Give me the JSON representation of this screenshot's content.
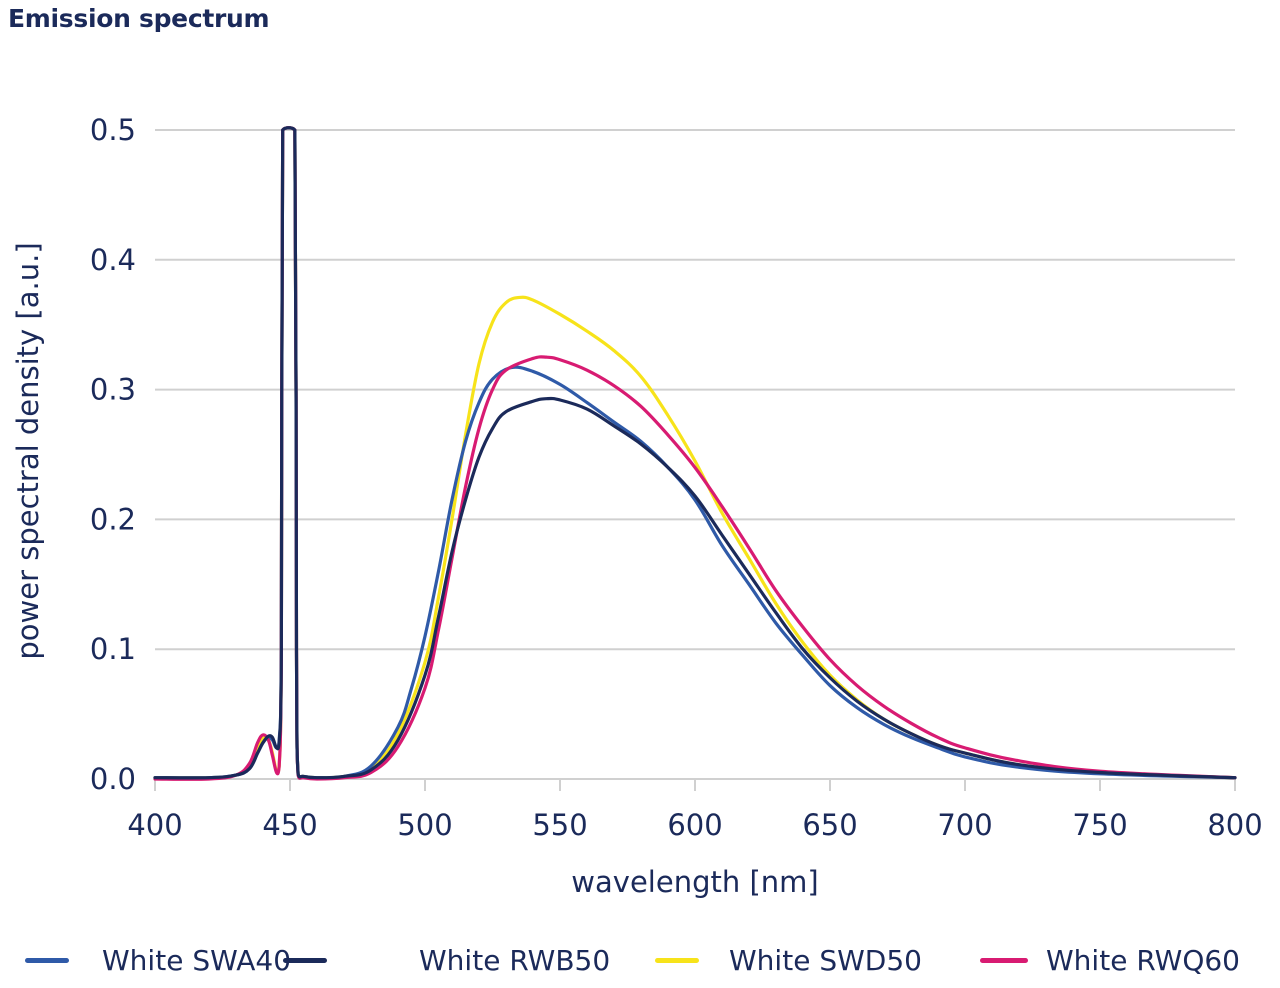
{
  "chart_data": {
    "type": "line",
    "title": "Emission spectrum",
    "xlabel": "wavelength [nm]",
    "ylabel": "power spectral density [a.u.]",
    "xlim": [
      400,
      800
    ],
    "ylim": [
      0,
      0.5
    ],
    "xticks": [
      400,
      450,
      500,
      550,
      600,
      650,
      700,
      750,
      800
    ],
    "xtick_labels": [
      "400",
      "450",
      "500",
      "550",
      "600",
      "650",
      "700",
      "750",
      "800"
    ],
    "yticks": [
      0.0,
      0.1,
      0.2,
      0.3,
      0.4,
      0.5
    ],
    "ytick_labels": [
      "0.0",
      "0.1",
      "0.2",
      "0.3",
      "0.4",
      "0.5"
    ],
    "grid": true,
    "legend_position": "bottom",
    "series": [
      {
        "name": "White SWA40",
        "color": "#2f5aa8",
        "x": [
          400,
          420,
          430,
          435,
          438,
          440,
          442,
          443.5,
          445,
          446,
          446.8,
          447.3,
          451.8,
          452.4,
          453,
          455,
          460,
          470,
          480,
          490,
          495,
          500,
          505,
          510,
          515,
          520,
          525,
          532,
          540,
          550,
          560,
          570,
          580,
          590,
          600,
          610,
          620,
          630,
          640,
          650,
          660,
          670,
          680,
          690,
          700,
          720,
          750,
          800
        ],
        "y": [
          0.001,
          0.001,
          0.003,
          0.008,
          0.02,
          0.028,
          0.032,
          0.03,
          0.024,
          0.03,
          0.1,
          0.5,
          0.5,
          0.1,
          0.004,
          0.002,
          0.001,
          0.002,
          0.01,
          0.04,
          0.07,
          0.11,
          0.16,
          0.215,
          0.26,
          0.29,
          0.308,
          0.317,
          0.314,
          0.304,
          0.29,
          0.275,
          0.26,
          0.24,
          0.215,
          0.18,
          0.15,
          0.12,
          0.095,
          0.072,
          0.055,
          0.042,
          0.032,
          0.024,
          0.017,
          0.009,
          0.004,
          0.001
        ]
      },
      {
        "name": "White RWB50",
        "color": "#1b2a5a",
        "x": [
          400,
          420,
          430,
          435,
          438,
          440,
          442,
          443.5,
          445,
          446,
          446.8,
          447.3,
          451.8,
          452.4,
          453,
          455,
          460,
          470,
          480,
          490,
          500,
          505,
          510,
          515,
          520,
          525,
          530,
          540,
          545,
          550,
          560,
          570,
          580,
          590,
          600,
          610,
          620,
          630,
          640,
          650,
          660,
          670,
          680,
          690,
          700,
          720,
          750,
          800
        ],
        "y": [
          0.001,
          0.001,
          0.003,
          0.008,
          0.02,
          0.028,
          0.033,
          0.032,
          0.024,
          0.028,
          0.1,
          0.5,
          0.5,
          0.1,
          0.004,
          0.002,
          0.001,
          0.002,
          0.007,
          0.03,
          0.08,
          0.125,
          0.175,
          0.215,
          0.248,
          0.27,
          0.283,
          0.291,
          0.293,
          0.292,
          0.285,
          0.272,
          0.258,
          0.24,
          0.218,
          0.188,
          0.158,
          0.128,
          0.1,
          0.078,
          0.06,
          0.046,
          0.035,
          0.026,
          0.02,
          0.011,
          0.005,
          0.001
        ]
      },
      {
        "name": "White SWD50",
        "color": "#f7e31a",
        "x": [
          400,
          420,
          430,
          435,
          438,
          440,
          442,
          443.5,
          445,
          446,
          446.8,
          447.3,
          451.8,
          452.4,
          453,
          455,
          460,
          470,
          480,
          490,
          500,
          505,
          510,
          515,
          520,
          525,
          530,
          535,
          540,
          550,
          560,
          570,
          580,
          590,
          600,
          610,
          620,
          630,
          640,
          650,
          660,
          670,
          680,
          690,
          700,
          720,
          750,
          800
        ],
        "y": [
          0.001,
          0.001,
          0.003,
          0.01,
          0.024,
          0.032,
          0.03,
          0.02,
          0.006,
          0.01,
          0.1,
          0.5,
          0.5,
          0.1,
          0.004,
          0.002,
          0.001,
          0.002,
          0.008,
          0.035,
          0.09,
          0.14,
          0.2,
          0.265,
          0.32,
          0.352,
          0.367,
          0.371,
          0.369,
          0.358,
          0.345,
          0.33,
          0.31,
          0.28,
          0.245,
          0.205,
          0.17,
          0.135,
          0.105,
          0.08,
          0.061,
          0.046,
          0.035,
          0.026,
          0.02,
          0.011,
          0.005,
          0.001
        ]
      },
      {
        "name": "White RWQ60",
        "color": "#d81b72",
        "x": [
          400,
          420,
          430,
          435,
          438,
          440,
          442,
          443.5,
          445,
          446,
          446.8,
          447.3,
          451.8,
          452.4,
          453,
          455,
          460,
          470,
          480,
          490,
          500,
          505,
          510,
          515,
          520,
          525,
          530,
          540,
          545,
          550,
          560,
          570,
          580,
          590,
          600,
          610,
          620,
          630,
          640,
          650,
          660,
          670,
          680,
          690,
          700,
          720,
          750,
          800
        ],
        "y": [
          0.0,
          0.0,
          0.003,
          0.012,
          0.028,
          0.034,
          0.03,
          0.018,
          0.005,
          0.01,
          0.1,
          0.5,
          0.5,
          0.1,
          0.003,
          0.001,
          0.0,
          0.001,
          0.005,
          0.025,
          0.07,
          0.115,
          0.17,
          0.225,
          0.27,
          0.3,
          0.315,
          0.324,
          0.325,
          0.323,
          0.315,
          0.303,
          0.287,
          0.265,
          0.24,
          0.21,
          0.178,
          0.145,
          0.117,
          0.092,
          0.072,
          0.056,
          0.043,
          0.032,
          0.024,
          0.014,
          0.006,
          0.001
        ]
      }
    ]
  }
}
